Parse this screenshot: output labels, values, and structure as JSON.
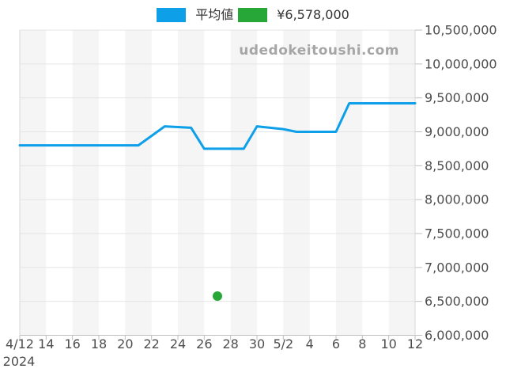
{
  "watermark": "udedokeitoushi.com",
  "legend": {
    "items": [
      {
        "label": "平均値",
        "color": "#0da0e8"
      },
      {
        "label": "¥6,578,000",
        "color": "#27a737"
      }
    ]
  },
  "colors": {
    "band": "#f5f5f5",
    "grid": "#e4e4e4",
    "plot_border": "#d8d8d8",
    "axis_line": "#bfbfbf",
    "tick": "#bfbfbf",
    "axis_label": "#4d4d4d",
    "watermark_text": "#a6a6a6",
    "line_blue": "#0da0e8",
    "point_green": "#27a737",
    "legend_text": "#333333"
  },
  "chart_data": {
    "type": "line",
    "title": "",
    "xlabel": "",
    "ylabel": "",
    "legend_position": "top",
    "grid": "horizontal",
    "plot_bands": "alternating vertical gray stripes, one per 2-day interval starting at 4/12",
    "ylim": [
      6000000,
      10500000
    ],
    "y_tick_interval": 500000,
    "y_tick_labels": [
      "10,500,000",
      "10,000,000",
      "9,500,000",
      "9,000,000",
      "8,500,000",
      "8,000,000",
      "7,500,000",
      "7,000,000",
      "6,500,000",
      "6,000,000"
    ],
    "x_tick_labels": [
      "4/12",
      "14",
      "16",
      "18",
      "20",
      "22",
      "24",
      "26",
      "28",
      "30",
      "5/2",
      "4",
      "6",
      "8",
      "10",
      "12"
    ],
    "x_year_label": "2024",
    "x": [
      "4/12",
      "4/13",
      "4/14",
      "4/15",
      "4/16",
      "4/17",
      "4/18",
      "4/19",
      "4/20",
      "4/21",
      "4/22",
      "4/23",
      "4/24",
      "4/25",
      "4/26",
      "4/27",
      "4/28",
      "4/29",
      "4/30",
      "5/1",
      "5/2",
      "5/3",
      "5/4",
      "5/5",
      "5/6",
      "5/7",
      "5/8",
      "5/9",
      "5/10",
      "5/11",
      "5/12"
    ],
    "series": [
      {
        "name": "平均値",
        "type": "line",
        "color": "#0da0e8",
        "values": [
          8800000,
          8800000,
          8800000,
          8800000,
          8800000,
          8800000,
          8800000,
          8800000,
          8800000,
          8800000,
          8940000,
          9080000,
          9070000,
          9060000,
          8750000,
          8750000,
          8750000,
          8750000,
          9080000,
          9060000,
          9040000,
          9000000,
          9000000,
          9000000,
          9000000,
          9420000,
          9420000,
          9420000,
          9420000,
          9420000,
          9420000
        ]
      },
      {
        "name": "¥6,578,000",
        "type": "scatter",
        "color": "#27a737",
        "points": [
          {
            "x": "4/27",
            "value": 6578000
          }
        ]
      }
    ]
  }
}
